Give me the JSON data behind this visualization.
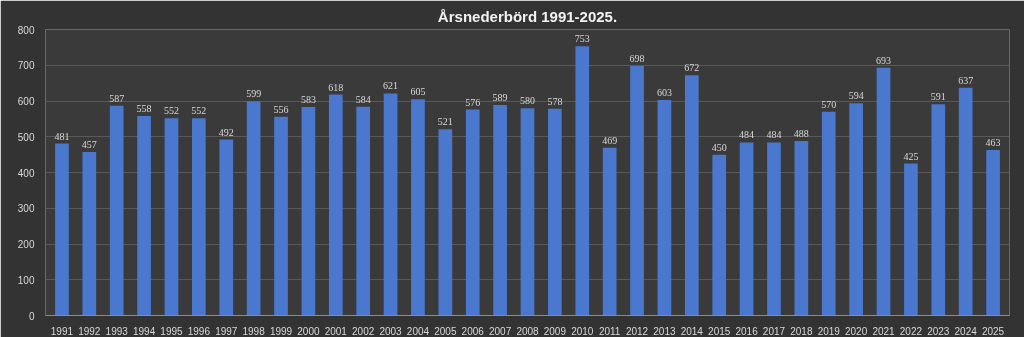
{
  "chart_data": {
    "type": "bar",
    "title": "Årsnederbörd 1991-2025.",
    "categories": [
      "1991",
      "1992",
      "1993",
      "1994",
      "1995",
      "1996",
      "1997",
      "1998",
      "1999",
      "2000",
      "2001",
      "2002",
      "2003",
      "2004",
      "2005",
      "2006",
      "2007",
      "2008",
      "2009",
      "2010",
      "2011",
      "2012",
      "2013",
      "2014",
      "2015",
      "2016",
      "2017",
      "2018",
      "2019",
      "2020",
      "2021",
      "2022",
      "2023",
      "2024",
      "2025"
    ],
    "values": [
      481,
      457,
      587,
      558,
      552,
      552,
      492,
      599,
      556,
      583,
      618,
      584,
      621,
      605,
      521,
      576,
      589,
      580,
      578,
      753,
      469,
      698,
      603,
      672,
      450,
      484,
      484,
      488,
      570,
      594,
      693,
      425,
      591,
      637,
      463
    ],
    "color": "#4a78cf",
    "ylim": [
      0,
      800
    ],
    "yticks": [
      0,
      100,
      200,
      300,
      400,
      500,
      600,
      700,
      800
    ],
    "grid": "y",
    "data_labels": true
  }
}
